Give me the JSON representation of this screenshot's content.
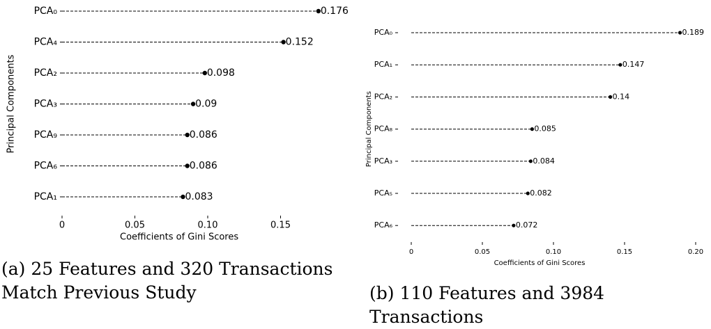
{
  "chart_data": [
    {
      "type": "lollipop",
      "caption": "(a) 25 Features and 320 Transactions Match Previous Study",
      "y_label": "Principal Components",
      "x_label": "Coefficients of Gini Scores",
      "categories": [
        "PCA₀",
        "PCA₄",
        "PCA₂",
        "PCA₃",
        "PCA₉",
        "PCA₆",
        "PCA₁"
      ],
      "values": [
        0.176,
        0.152,
        0.098,
        0.09,
        0.086,
        0.086,
        0.083
      ],
      "color": "#000000",
      "xlim": [
        0,
        0.18
      ],
      "xticks": [
        0,
        0.05,
        {
          "value": 0.1,
          "label": "0.10"
        },
        0.15
      ]
    },
    {
      "type": "lollipop",
      "caption": "(b) 110 Features and 3984 Transactions",
      "y_label": "Principal Components",
      "x_label": "Coefficients of Gini Scores",
      "categories": [
        "PCA₀",
        "PCA₁",
        "PCA₂",
        "PCA₈",
        "PCA₃",
        "PCA₅",
        "PCA₆"
      ],
      "values": [
        0.189,
        0.147,
        0.14,
        0.085,
        0.084,
        0.082,
        0.072
      ],
      "color": "#000000",
      "xlim": [
        0,
        0.2
      ],
      "xticks": [
        0,
        0.05,
        {
          "value": 0.1,
          "label": "0.10"
        },
        0.15,
        {
          "value": 0.2,
          "label": "0.20"
        }
      ]
    }
  ]
}
